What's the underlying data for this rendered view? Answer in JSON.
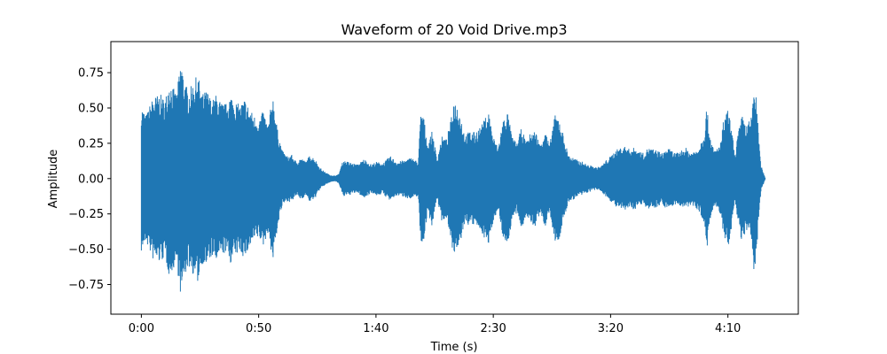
{
  "chart_data": {
    "type": "area",
    "title": "Waveform of 20 Void Drive.mp3",
    "xlabel": "Time (s)",
    "ylabel": "Amplitude",
    "xlim": [
      -13,
      280
    ],
    "ylim": [
      -0.96,
      0.97
    ],
    "grid": false,
    "legend": "none",
    "color": "#1f77b4",
    "x_ticks": [
      {
        "value": 0,
        "label": "0:00"
      },
      {
        "value": 50,
        "label": "0:50"
      },
      {
        "value": 100,
        "label": "1:40"
      },
      {
        "value": 150,
        "label": "2:30"
      },
      {
        "value": 200,
        "label": "3:20"
      },
      {
        "value": 250,
        "label": "4:10"
      }
    ],
    "y_ticks": [
      {
        "value": 0.75,
        "label": "0.75"
      },
      {
        "value": 0.5,
        "label": "0.50"
      },
      {
        "value": 0.25,
        "label": "0.25"
      },
      {
        "value": 0.0,
        "label": "0.00"
      },
      {
        "value": -0.25,
        "label": "−0.25"
      },
      {
        "value": -0.5,
        "label": "−0.50"
      },
      {
        "value": -0.75,
        "label": "−0.75"
      }
    ],
    "series": [
      {
        "x": [
          0,
          2,
          5,
          8,
          10,
          12,
          14,
          15,
          17,
          18,
          20,
          22,
          24,
          26,
          28,
          30,
          32,
          34,
          36,
          38,
          40,
          42,
          44,
          46,
          48,
          50,
          52,
          54,
          56,
          58,
          60,
          62,
          64,
          66,
          68,
          70,
          72,
          74,
          76,
          78,
          80,
          82,
          84,
          86,
          88,
          90,
          92,
          95,
          98,
          100,
          103,
          106,
          109,
          112,
          115,
          118,
          119,
          120,
          122,
          124,
          126,
          128,
          130,
          132,
          133,
          135,
          138,
          140,
          142,
          145,
          148,
          150,
          152,
          154,
          156,
          158,
          160,
          162,
          164,
          166,
          168,
          170,
          172,
          174,
          176,
          178,
          180,
          182,
          184,
          186,
          188,
          190,
          192,
          194,
          196,
          198,
          200,
          202,
          204,
          206,
          208,
          210,
          212,
          214,
          216,
          218,
          220,
          222,
          224,
          226,
          228,
          230,
          232,
          234,
          236,
          238,
          240,
          241,
          242,
          244,
          246,
          247,
          248,
          250,
          252,
          253,
          254,
          256,
          258,
          260,
          261,
          262,
          264,
          266
        ],
        "envelope": [
          0.52,
          0.45,
          0.58,
          0.6,
          0.56,
          0.7,
          0.63,
          0.6,
          0.86,
          0.72,
          0.62,
          0.68,
          0.74,
          0.6,
          0.63,
          0.55,
          0.6,
          0.54,
          0.53,
          0.6,
          0.55,
          0.52,
          0.57,
          0.5,
          0.45,
          0.42,
          0.48,
          0.38,
          0.6,
          0.35,
          0.2,
          0.16,
          0.17,
          0.12,
          0.15,
          0.12,
          0.17,
          0.14,
          0.08,
          0.05,
          0.03,
          0.02,
          0.03,
          0.13,
          0.12,
          0.11,
          0.1,
          0.14,
          0.1,
          0.12,
          0.11,
          0.16,
          0.12,
          0.13,
          0.15,
          0.12,
          0.45,
          0.48,
          0.24,
          0.34,
          0.14,
          0.3,
          0.28,
          0.42,
          0.56,
          0.52,
          0.31,
          0.34,
          0.33,
          0.38,
          0.48,
          0.3,
          0.22,
          0.41,
          0.48,
          0.3,
          0.25,
          0.36,
          0.26,
          0.33,
          0.34,
          0.24,
          0.36,
          0.23,
          0.45,
          0.44,
          0.3,
          0.17,
          0.15,
          0.13,
          0.12,
          0.1,
          0.09,
          0.08,
          0.09,
          0.13,
          0.16,
          0.2,
          0.22,
          0.23,
          0.21,
          0.22,
          0.2,
          0.18,
          0.22,
          0.21,
          0.2,
          0.18,
          0.22,
          0.2,
          0.18,
          0.2,
          0.22,
          0.19,
          0.2,
          0.24,
          0.34,
          0.52,
          0.34,
          0.2,
          0.23,
          0.26,
          0.4,
          0.5,
          0.3,
          0.16,
          0.3,
          0.45,
          0.38,
          0.44,
          0.67,
          0.58,
          0.1,
          0.0
        ]
      }
    ]
  }
}
